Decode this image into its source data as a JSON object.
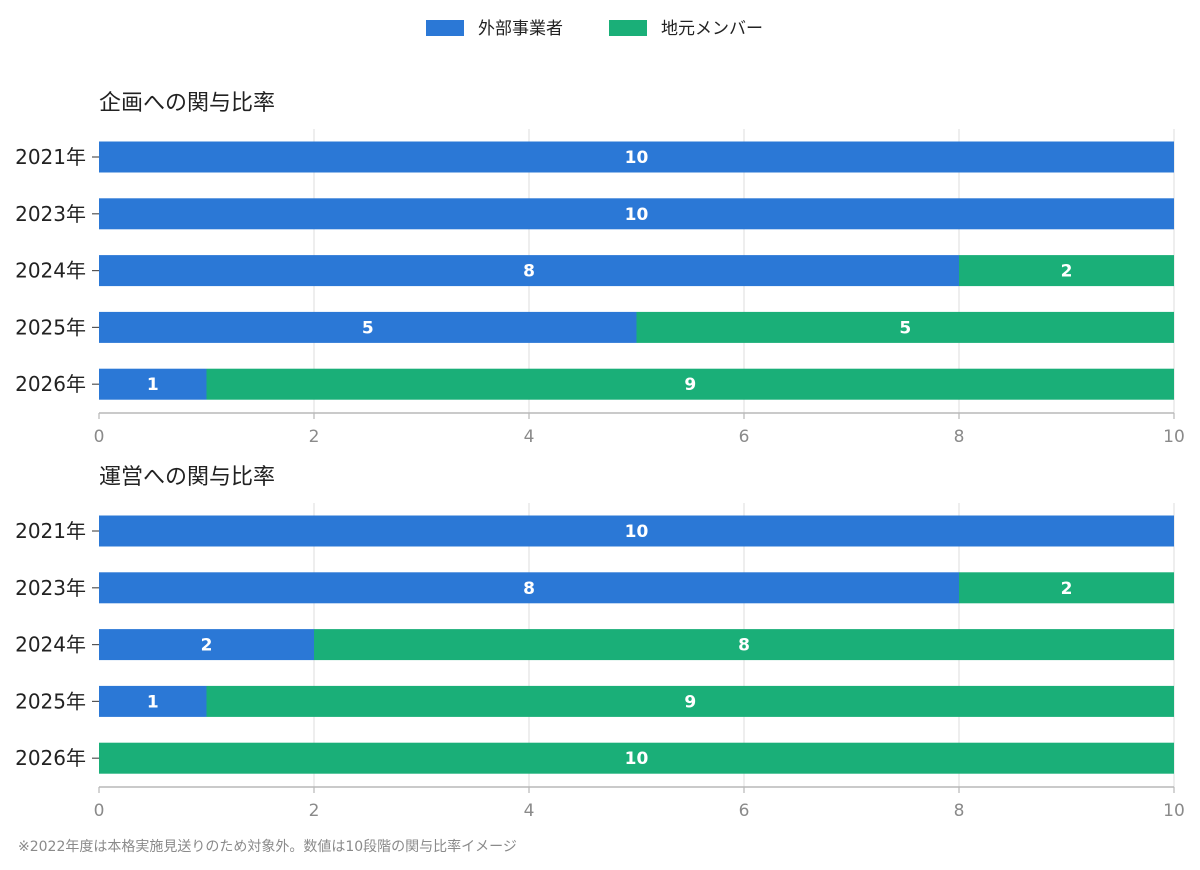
{
  "colors": {
    "external": "#2b78d6",
    "local": "#1aaf78",
    "grid": "#dcdcdc",
    "axis": "#b8b8b8",
    "text": "#222222",
    "tick": "#8a8a8a"
  },
  "legend": [
    {
      "label": "外部事業者",
      "series": "external"
    },
    {
      "label": "地元メンバー",
      "series": "local"
    }
  ],
  "footnote": "※2022年度は本格実施見送りのため対象外。数値は10段階の関与比率イメージ",
  "chart_data": [
    {
      "type": "bar",
      "orientation": "horizontal",
      "stacked": true,
      "title": "企画への関与比率",
      "categories": [
        "2021年",
        "2023年",
        "2024年",
        "2025年",
        "2026年"
      ],
      "series": [
        {
          "name": "外部事業者",
          "key": "external",
          "values": [
            10,
            10,
            8,
            5,
            1
          ]
        },
        {
          "name": "地元メンバー",
          "key": "local",
          "values": [
            0,
            0,
            2,
            5,
            9
          ]
        }
      ],
      "xlim": [
        0,
        10
      ],
      "xticks": [
        0,
        2,
        4,
        6,
        8,
        10
      ],
      "grid": true,
      "data_labels": true
    },
    {
      "type": "bar",
      "orientation": "horizontal",
      "stacked": true,
      "title": "運営への関与比率",
      "categories": [
        "2021年",
        "2023年",
        "2024年",
        "2025年",
        "2026年"
      ],
      "series": [
        {
          "name": "外部事業者",
          "key": "external",
          "values": [
            10,
            8,
            2,
            1,
            0
          ]
        },
        {
          "name": "地元メンバー",
          "key": "local",
          "values": [
            0,
            2,
            8,
            9,
            10
          ]
        }
      ],
      "xlim": [
        0,
        10
      ],
      "xticks": [
        0,
        2,
        4,
        6,
        8,
        10
      ],
      "grid": true,
      "data_labels": true
    }
  ]
}
